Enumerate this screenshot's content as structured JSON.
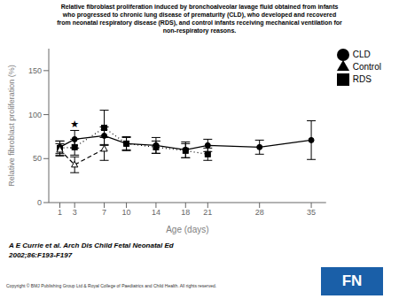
{
  "chart_data": {
    "type": "line",
    "title": [
      "Relative fibroblast proliferation induced by bronchoalveolar lavage fluid obtained from infants",
      "who progressed to chronic lung disease of prematurity (CLD), who developed and recovered",
      "from neonatal respiratory disease (RDS), and control infants receiving mechanical ventilation for",
      "non-respiratory reasons."
    ],
    "xlabel": "Age (days)",
    "ylabel": "Relative fibroblast proliferation (%)",
    "x": [
      1,
      3,
      7,
      10,
      14,
      18,
      21,
      28,
      35
    ],
    "series": [
      {
        "name": "CLD",
        "color": "#000000",
        "marker": "circle",
        "line_style": "solid",
        "values": [
          63,
          72,
          76,
          67,
          65,
          60,
          65,
          63,
          71
        ],
        "errors": [
          7,
          10,
          10,
          8,
          9,
          9,
          7,
          8,
          22
        ]
      },
      {
        "name": "RDS",
        "color": "#000000",
        "marker": "square",
        "line_style": "dotted",
        "values": [
          62,
          63,
          85,
          67,
          63,
          59,
          55,
          null,
          null
        ],
        "errors": [
          8,
          9,
          20,
          7,
          7,
          8,
          7,
          null,
          null
        ]
      },
      {
        "name": "Control",
        "color": "#000000",
        "marker": "triangle_open",
        "line_style": "dashed",
        "values": [
          60,
          43,
          61,
          null,
          null,
          null,
          null,
          null,
          null
        ],
        "errors": [
          7,
          9,
          13,
          null,
          null,
          null,
          null,
          null,
          null
        ]
      }
    ],
    "xlim": [
      -0.5,
      37
    ],
    "xticks": [
      1,
      3,
      7,
      10,
      14,
      18,
      21,
      28,
      35
    ],
    "ylim": [
      0,
      175
    ],
    "yticks": [
      0,
      50,
      100,
      150
    ],
    "grid": false,
    "legend": "right",
    "annotations": [
      {
        "text": "★",
        "x": 3,
        "y": 84
      }
    ],
    "citation": [
      "A E Currie et al. Arch Dis Child Fetal Neonatal Ed",
      "2002;86:F193-F197"
    ],
    "copyright": "Copyright © BMJ Publishing Group Ltd & Royal College of Paediatrics and Child Health. All rights reserved.",
    "logo": {
      "text": "FN",
      "color": "#1a5fa8"
    }
  }
}
